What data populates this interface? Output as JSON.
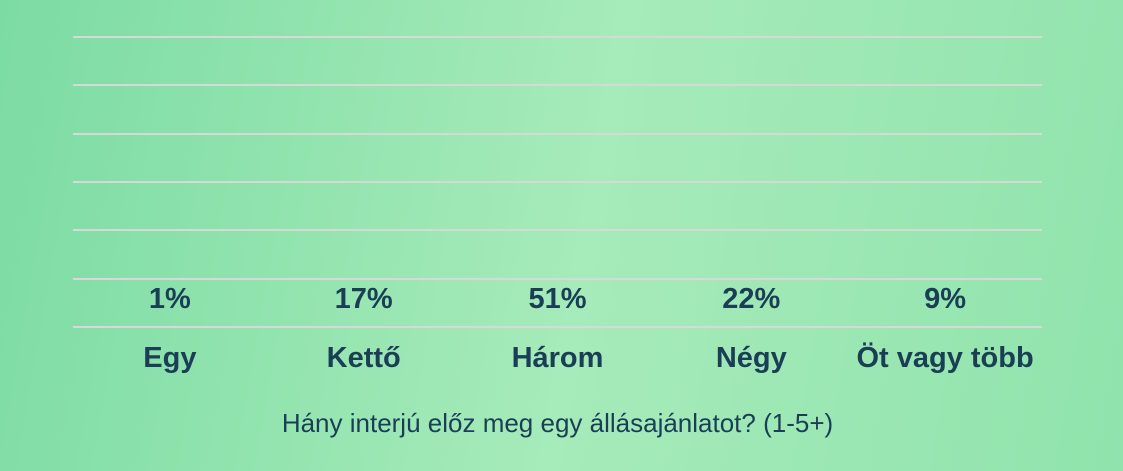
{
  "chart_data": {
    "type": "bar",
    "title": "Hány interjú előz meg egy állásajánlatot? (1-5+)",
    "categories": [
      "Egy",
      "Kettő",
      "Három",
      "Négy",
      "Öt vagy több"
    ],
    "values": [
      1,
      17,
      51,
      22,
      9
    ],
    "value_labels": [
      "1%",
      "17%",
      "51%",
      "22%",
      "9%"
    ],
    "xlabel": "",
    "ylabel": "",
    "ylim": [
      0,
      60
    ],
    "gridline_step": 10,
    "grid": true,
    "legend": false,
    "colors": {
      "bar": "#ffffff",
      "label": "#1a3e56",
      "gridline": "#d6d9d5",
      "background_left": "#7cdba3",
      "background_mid": "#a6ebba",
      "background_right": "#90e3ac"
    }
  }
}
